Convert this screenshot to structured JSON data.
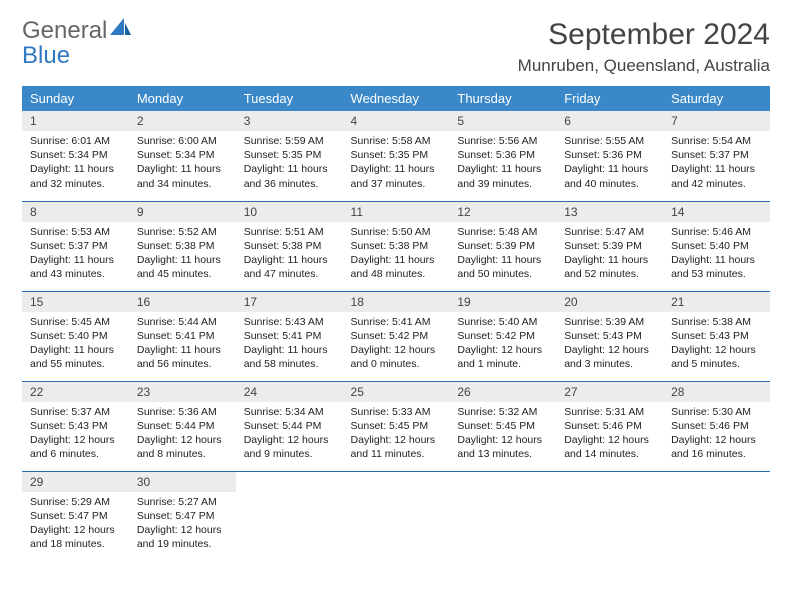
{
  "logo": {
    "text1": "General",
    "text2": "Blue"
  },
  "title": "September 2024",
  "location": "Munruben, Queensland, Australia",
  "colors": {
    "header_bg": "#3b88c9",
    "header_fg": "#ffffff",
    "row_border": "#2b6daa",
    "daynum_bg": "#ececec",
    "logo_gray": "#666666",
    "logo_blue": "#2f78c2"
  },
  "weekdays": [
    "Sunday",
    "Monday",
    "Tuesday",
    "Wednesday",
    "Thursday",
    "Friday",
    "Saturday"
  ],
  "weeks": [
    [
      {
        "n": "1",
        "sr": "6:01 AM",
        "ss": "5:34 PM",
        "dl": "11 hours and 32 minutes."
      },
      {
        "n": "2",
        "sr": "6:00 AM",
        "ss": "5:34 PM",
        "dl": "11 hours and 34 minutes."
      },
      {
        "n": "3",
        "sr": "5:59 AM",
        "ss": "5:35 PM",
        "dl": "11 hours and 36 minutes."
      },
      {
        "n": "4",
        "sr": "5:58 AM",
        "ss": "5:35 PM",
        "dl": "11 hours and 37 minutes."
      },
      {
        "n": "5",
        "sr": "5:56 AM",
        "ss": "5:36 PM",
        "dl": "11 hours and 39 minutes."
      },
      {
        "n": "6",
        "sr": "5:55 AM",
        "ss": "5:36 PM",
        "dl": "11 hours and 40 minutes."
      },
      {
        "n": "7",
        "sr": "5:54 AM",
        "ss": "5:37 PM",
        "dl": "11 hours and 42 minutes."
      }
    ],
    [
      {
        "n": "8",
        "sr": "5:53 AM",
        "ss": "5:37 PM",
        "dl": "11 hours and 43 minutes."
      },
      {
        "n": "9",
        "sr": "5:52 AM",
        "ss": "5:38 PM",
        "dl": "11 hours and 45 minutes."
      },
      {
        "n": "10",
        "sr": "5:51 AM",
        "ss": "5:38 PM",
        "dl": "11 hours and 47 minutes."
      },
      {
        "n": "11",
        "sr": "5:50 AM",
        "ss": "5:38 PM",
        "dl": "11 hours and 48 minutes."
      },
      {
        "n": "12",
        "sr": "5:48 AM",
        "ss": "5:39 PM",
        "dl": "11 hours and 50 minutes."
      },
      {
        "n": "13",
        "sr": "5:47 AM",
        "ss": "5:39 PM",
        "dl": "11 hours and 52 minutes."
      },
      {
        "n": "14",
        "sr": "5:46 AM",
        "ss": "5:40 PM",
        "dl": "11 hours and 53 minutes."
      }
    ],
    [
      {
        "n": "15",
        "sr": "5:45 AM",
        "ss": "5:40 PM",
        "dl": "11 hours and 55 minutes."
      },
      {
        "n": "16",
        "sr": "5:44 AM",
        "ss": "5:41 PM",
        "dl": "11 hours and 56 minutes."
      },
      {
        "n": "17",
        "sr": "5:43 AM",
        "ss": "5:41 PM",
        "dl": "11 hours and 58 minutes."
      },
      {
        "n": "18",
        "sr": "5:41 AM",
        "ss": "5:42 PM",
        "dl": "12 hours and 0 minutes."
      },
      {
        "n": "19",
        "sr": "5:40 AM",
        "ss": "5:42 PM",
        "dl": "12 hours and 1 minute."
      },
      {
        "n": "20",
        "sr": "5:39 AM",
        "ss": "5:43 PM",
        "dl": "12 hours and 3 minutes."
      },
      {
        "n": "21",
        "sr": "5:38 AM",
        "ss": "5:43 PM",
        "dl": "12 hours and 5 minutes."
      }
    ],
    [
      {
        "n": "22",
        "sr": "5:37 AM",
        "ss": "5:43 PM",
        "dl": "12 hours and 6 minutes."
      },
      {
        "n": "23",
        "sr": "5:36 AM",
        "ss": "5:44 PM",
        "dl": "12 hours and 8 minutes."
      },
      {
        "n": "24",
        "sr": "5:34 AM",
        "ss": "5:44 PM",
        "dl": "12 hours and 9 minutes."
      },
      {
        "n": "25",
        "sr": "5:33 AM",
        "ss": "5:45 PM",
        "dl": "12 hours and 11 minutes."
      },
      {
        "n": "26",
        "sr": "5:32 AM",
        "ss": "5:45 PM",
        "dl": "12 hours and 13 minutes."
      },
      {
        "n": "27",
        "sr": "5:31 AM",
        "ss": "5:46 PM",
        "dl": "12 hours and 14 minutes."
      },
      {
        "n": "28",
        "sr": "5:30 AM",
        "ss": "5:46 PM",
        "dl": "12 hours and 16 minutes."
      }
    ],
    [
      {
        "n": "29",
        "sr": "5:29 AM",
        "ss": "5:47 PM",
        "dl": "12 hours and 18 minutes."
      },
      {
        "n": "30",
        "sr": "5:27 AM",
        "ss": "5:47 PM",
        "dl": "12 hours and 19 minutes."
      },
      null,
      null,
      null,
      null,
      null
    ]
  ],
  "labels": {
    "sunrise": "Sunrise: ",
    "sunset": "Sunset: ",
    "daylight": "Daylight: "
  }
}
